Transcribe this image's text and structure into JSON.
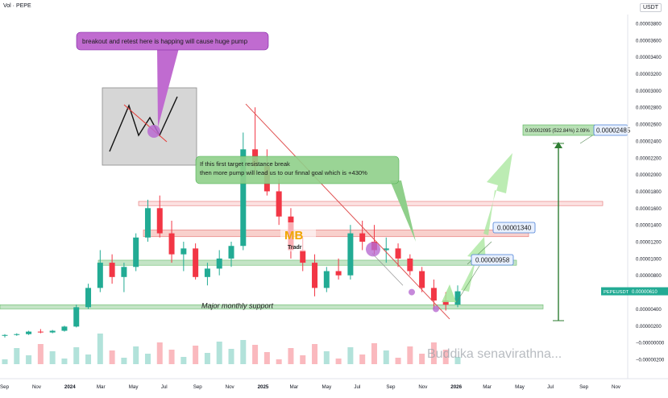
{
  "header": {
    "volume_label": "Vol · PEPE",
    "currency": "USDT"
  },
  "axes": {
    "y_ticks": [
      "0.00003800",
      "0.00003600",
      "0.00003400",
      "0.00003200",
      "0.00003000",
      "0.00002800",
      "0.00002600",
      "0.00002400",
      "0.00002200",
      "0.00002000",
      "0.00001800",
      "0.00001600",
      "0.00001400",
      "0.00001200",
      "0.00001000",
      "0.00000800",
      "0.00000600",
      "0.00000400",
      "0.00000200",
      "−0.00000000",
      "−0.00000200"
    ],
    "x_ticks": [
      "Sep",
      "Nov",
      "2024",
      "Mar",
      "May",
      "Jul",
      "Sep",
      "Nov",
      "2025",
      "Mar",
      "May",
      "Jul",
      "Sep",
      "Nov",
      "2026",
      "Mar",
      "May",
      "Jul",
      "Sep",
      "Nov"
    ]
  },
  "annotations": {
    "breakout_note": "breakout and retest here is happing will cause huge pump",
    "target_note_line1": "If this first target resistance break",
    "target_note_line2": "then more pump will lead us to our finnal goal which is +430%",
    "support_label": "Major monthly support",
    "target1_label": "0.00000958",
    "target2_label": "0.00001340",
    "target3_label": "0.00002485",
    "measure_label": "0.00002095 (522.84%) 2.09%",
    "ticker_label": "PEPEUSDT",
    "ticker_price": "0.00000610",
    "watermark": "Buddika senavirathna...",
    "logo_text": "MB",
    "logo_subtext": "Tradr"
  },
  "colors": {
    "up": "#22ab94",
    "down": "#f23645",
    "support_zone": "#a5d6a7",
    "resistance_zone": "#f5b7b1",
    "note_purple": "#c06bd0",
    "note_green": "#8fcf8a",
    "arrow_green": "#a5e59a"
  },
  "chart_data": {
    "type": "candlestick",
    "title": "",
    "xlabel": "",
    "ylabel": "",
    "ylim": [
      -2e-06,
      3.9e-05
    ],
    "xlim": [
      "2023-09",
      "2026-11"
    ],
    "series": [
      {
        "values": [
          [
            8e-07,
            1e-06,
            6e-07,
            9e-07
          ],
          [
            9e-07,
            1.1e-06,
            8e-07,
            1e-06
          ],
          [
            1e-06,
            1.4e-06,
            9e-07,
            1.3e-06
          ],
          [
            1.3e-06,
            1.6e-06,
            1.1e-06,
            1.2e-06
          ],
          [
            1.2e-06,
            1.5e-06,
            1.1e-06,
            1.4e-06
          ],
          [
            1.4e-06,
            2e-06,
            1.3e-06,
            1.9e-06
          ],
          [
            1.9e-06,
            4.5e-06,
            1.8e-06,
            4.2e-06
          ],
          [
            4.2e-06,
            7e-06,
            4e-06,
            6.5e-06
          ],
          [
            6.5e-06,
            1.1e-05,
            6e-06,
            9.5e-06
          ],
          [
            9.5e-06,
            1.05e-05,
            7e-06,
            7.8e-06
          ],
          [
            7.8e-06,
            9.5e-06,
            6e-06,
            9e-06
          ],
          [
            9e-06,
            1.3e-05,
            8.5e-06,
            1.25e-05
          ],
          [
            1.25e-05,
            1.7e-05,
            1.2e-05,
            1.6e-05
          ],
          [
            1.6e-05,
            1.75e-05,
            1.25e-05,
            1.3e-05
          ],
          [
            1.3e-05,
            1.45e-05,
            9.5e-06,
            1.05e-05
          ],
          [
            1.05e-05,
            1.2e-05,
            8.5e-06,
            1.12e-05
          ],
          [
            1.12e-05,
            1.18e-05,
            7.5e-06,
            7.8e-06
          ],
          [
            7.8e-06,
            9.5e-06,
            6.8e-06,
            8.8e-06
          ],
          [
            8.8e-06,
            1.1e-05,
            8e-06,
            1e-05
          ],
          [
            1e-05,
            1.2e-05,
            9e-06,
            1.15e-05
          ],
          [
            1.15e-05,
            2.5e-05,
            1.1e-05,
            2.3e-05
          ],
          [
            2.3e-05,
            2.8e-05,
            2e-05,
            2.1e-05
          ],
          [
            2.1e-05,
            2.3e-05,
            1.75e-05,
            1.8e-05
          ],
          [
            1.8e-05,
            1.95e-05,
            1.4e-05,
            1.5e-05
          ],
          [
            1.5e-05,
            1.6e-05,
            1e-05,
            1.1e-05
          ],
          [
            1.1e-05,
            1.25e-05,
            8.5e-06,
            9.5e-06
          ],
          [
            9.5e-06,
            1.05e-05,
            5.5e-06,
            6.5e-06
          ],
          [
            6.5e-06,
            9e-06,
            6e-06,
            8.5e-06
          ],
          [
            8.5e-06,
            1e-05,
            7.5e-06,
            8e-06
          ],
          [
            8e-06,
            1.4e-05,
            7.5e-06,
            1.3e-05
          ],
          [
            1.3e-05,
            1.45e-05,
            1.1e-05,
            1.2e-05
          ],
          [
            1.2e-05,
            1.4e-05,
            1.05e-05,
            1.1e-05
          ],
          [
            1.1e-05,
            1.25e-05,
            9.5e-06,
            1.12e-05
          ],
          [
            1.12e-05,
            1.18e-05,
            9e-06,
            1e-05
          ],
          [
            1e-05,
            1.05e-05,
            8e-06,
            8.5e-06
          ],
          [
            8.5e-06,
            9e-06,
            6e-06,
            6.5e-06
          ],
          [
            6.5e-06,
            7.5e-06,
            4e-06,
            5e-06
          ],
          [
            5e-06,
            6e-06,
            3.8e-06,
            4.5e-06
          ],
          [
            4.5e-06,
            6.8e-06,
            4.2e-06,
            6.1e-06
          ]
        ]
      }
    ],
    "zones": [
      {
        "label": "Major monthly support",
        "from": 4e-06,
        "to": 4.5e-06
      },
      {
        "from": 9.2e-06,
        "to": 9.8e-06
      },
      {
        "from": 1.26e-05,
        "to": 1.34e-05
      },
      {
        "from": 1.63e-05,
        "to": 1.68e-05
      }
    ],
    "grid": false,
    "legend": "none"
  }
}
